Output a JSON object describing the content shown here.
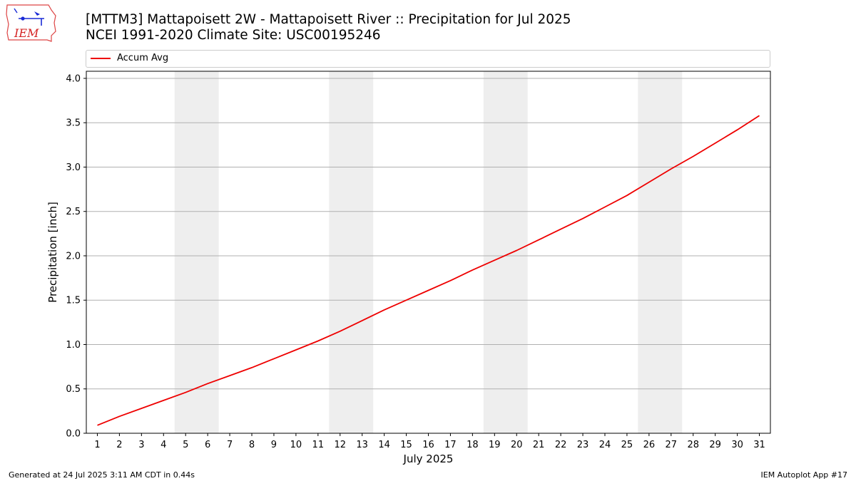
{
  "header": {
    "title_line1": "[MTTM3] Mattapoisett 2W - Mattapoisett River :: Precipitation for Jul 2025",
    "title_line2": "NCEI 1991-2020 Climate Site: USC00195246",
    "logo_text": "IEM",
    "logo_icon": "iowa-state-outline-weather-station-icon"
  },
  "footer": {
    "generated": "Generated at 24 Jul 2025 3:11 AM CDT in 0.44s",
    "app": "IEM Autoplot App #17"
  },
  "chart_data": {
    "type": "line",
    "title": "",
    "xlabel": "July 2025",
    "ylabel": "Precipitation [inch]",
    "xlim": [
      0.5,
      31.5
    ],
    "ylim": [
      0,
      4.08
    ],
    "yticks": [
      0,
      0.5,
      1,
      1.5,
      2,
      2.5,
      3,
      3.5,
      4
    ],
    "ytick_labels": [
      "0.0",
      "0.5",
      "1.0",
      "1.5",
      "2.0",
      "2.5",
      "3.0",
      "3.5",
      "4.0"
    ],
    "xticks": [
      1,
      2,
      3,
      4,
      5,
      6,
      7,
      8,
      9,
      10,
      11,
      12,
      13,
      14,
      15,
      16,
      17,
      18,
      19,
      20,
      21,
      22,
      23,
      24,
      25,
      26,
      27,
      28,
      29,
      30,
      31
    ],
    "xtick_labels": [
      "1",
      "2",
      "3",
      "4",
      "5",
      "6",
      "7",
      "8",
      "9",
      "10",
      "11",
      "12",
      "13",
      "14",
      "15",
      "16",
      "17",
      "18",
      "19",
      "20",
      "21",
      "22",
      "23",
      "24",
      "25",
      "26",
      "27",
      "28",
      "29",
      "30",
      "31"
    ],
    "grid": "horizontal",
    "legend_position": "top",
    "weekend_bands": [
      [
        4.5,
        6.5
      ],
      [
        11.5,
        13.5
      ],
      [
        18.5,
        20.5
      ],
      [
        25.5,
        27.5
      ]
    ],
    "colors": {
      "line": "#ee0000",
      "band": "#eeeeee",
      "grid": "#b0b0b0"
    },
    "series": [
      {
        "name": "Accum Avg",
        "x": [
          1,
          2,
          3,
          4,
          5,
          6,
          7,
          8,
          9,
          10,
          11,
          12,
          13,
          14,
          15,
          16,
          17,
          18,
          19,
          20,
          21,
          22,
          23,
          24,
          25,
          26,
          27,
          28,
          29,
          30,
          31
        ],
        "values": [
          0.09,
          0.19,
          0.28,
          0.37,
          0.46,
          0.56,
          0.65,
          0.74,
          0.84,
          0.94,
          1.04,
          1.15,
          1.27,
          1.39,
          1.5,
          1.61,
          1.72,
          1.84,
          1.95,
          2.06,
          2.18,
          2.3,
          2.42,
          2.55,
          2.68,
          2.83,
          2.98,
          3.12,
          3.27,
          3.42,
          3.58
        ]
      }
    ]
  }
}
